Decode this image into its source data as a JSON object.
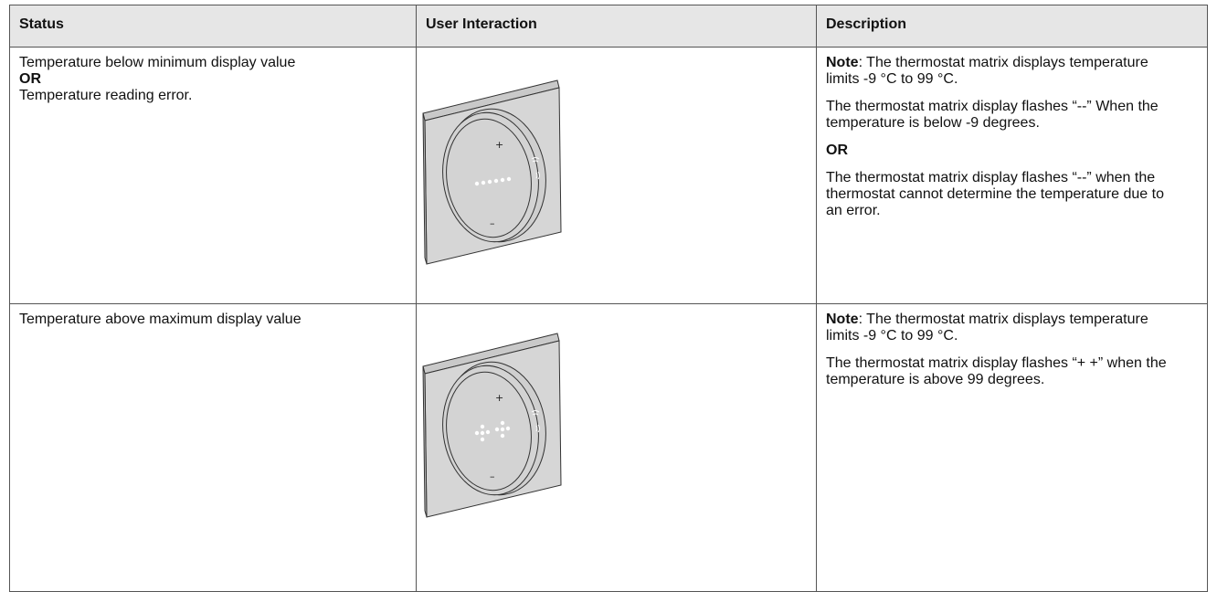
{
  "table": {
    "header": [
      "Status",
      "User Interaction",
      "Description"
    ],
    "rows": [
      {
        "status": [
          {
            "text": "Temperature below minimum display value",
            "bold": false
          },
          {
            "text": "OR",
            "bold": true
          },
          {
            "text": "Temperature reading error.",
            "bold": false
          }
        ],
        "description": [
          {
            "bold": "Note",
            "text": ": The thermostat matrix displays temperature limits -9 °C to 99 °C."
          },
          {
            "text": "The thermostat matrix display flashes “--” When the temperature is below -9 degrees."
          },
          {
            "bold": "OR"
          },
          {
            "text": "The thermostat matrix display flashes “--” when the thermostat cannot determine the temperature due to an error."
          }
        ]
      },
      {
        "status": [
          {
            "text": "Temperature above maximum display value",
            "bold": false
          }
        ],
        "description": [
          {
            "bold": "Note",
            "text": ": The thermostat matrix displays temperature limits -9 °C to 99 °C."
          },
          {
            "text": "The thermostat matrix display flashes “+ +” when the temperature is above 99 degrees."
          }
        ]
      }
    ]
  }
}
